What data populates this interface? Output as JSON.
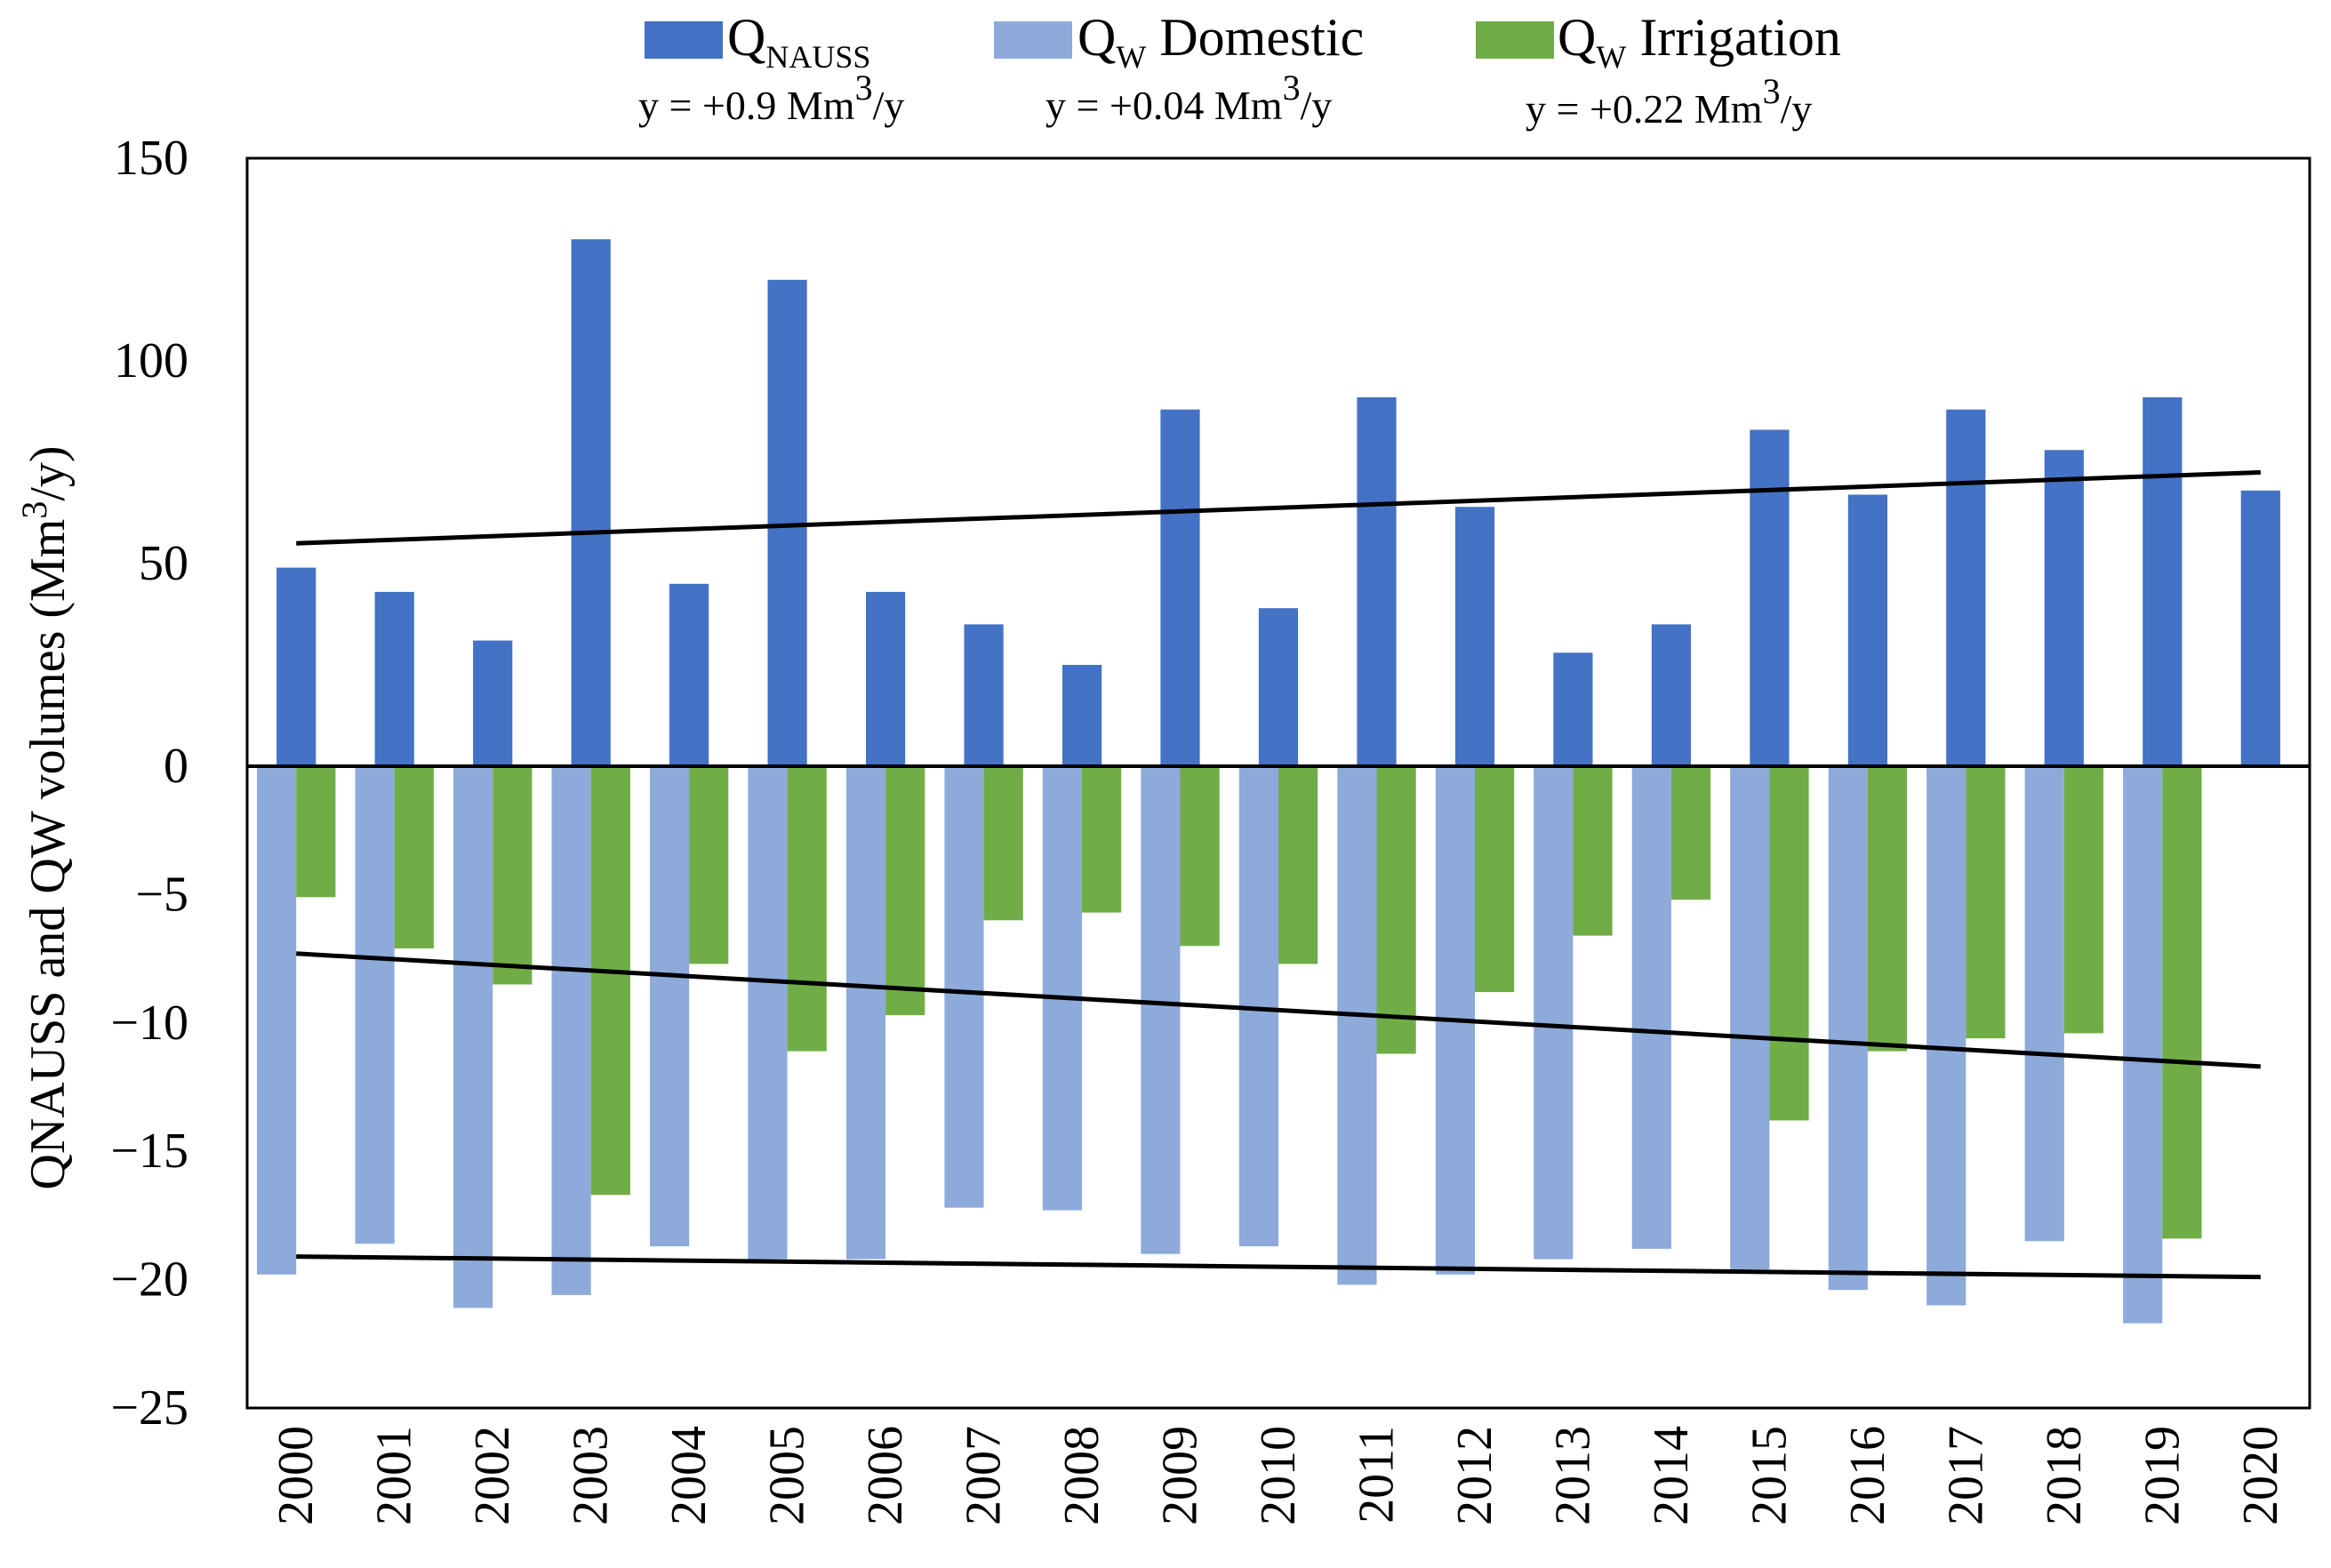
{
  "chart_data": {
    "type": "bar",
    "title": "",
    "xlabel": "",
    "ylabel": "QNAUSS and QW volumes (Mm3/y)",
    "ylabel_parts": {
      "before": "QNAUSS and QW volumes (Mm",
      "sup": "3",
      "after": "/y)"
    },
    "categories": [
      "2000",
      "2001",
      "2002",
      "2003",
      "2004",
      "2005",
      "2006",
      "2007",
      "2008",
      "2009",
      "2010",
      "2011",
      "2012",
      "2013",
      "2014",
      "2015",
      "2016",
      "2017",
      "2018",
      "2019",
      "2020"
    ],
    "y_ticks": [
      {
        "value": 150,
        "label": "150"
      },
      {
        "value": 100,
        "label": "100"
      },
      {
        "value": 50,
        "label": "50"
      },
      {
        "value": 0,
        "label": "0"
      },
      {
        "value": -5,
        "label": "−5"
      },
      {
        "value": -10,
        "label": "−10"
      },
      {
        "value": -15,
        "label": "−15"
      },
      {
        "value": -20,
        "label": "−20"
      },
      {
        "value": -25,
        "label": "−25"
      }
    ],
    "axis_note": "Broken scale: positive part 0–150, negative part 0 to −25",
    "series": [
      {
        "name": "QNAUSS",
        "sym": "Q",
        "sub": "NAUSS",
        "label_rest": "",
        "color": "#4472c4",
        "equation": {
          "pre": "y = +0.9 Mm",
          "sup": "3",
          "post": "/y"
        },
        "values": [
          49,
          43,
          31,
          130,
          45,
          120,
          43,
          35,
          25,
          88,
          39,
          91,
          64,
          28,
          35,
          83,
          67,
          88,
          78,
          91,
          68
        ],
        "trend": [
          55,
          72.5
        ]
      },
      {
        "name": "QW Domestic",
        "sym": "Q",
        "sub": "W",
        "label_rest": " Domestic",
        "color": "#8eaadb",
        "equation": {
          "pre": "y = +0.04 Mm",
          "sup": "3",
          "post": "/y"
        },
        "values": [
          -19.8,
          -18.6,
          -21.1,
          -20.6,
          -18.7,
          -19.2,
          -19.2,
          -17.2,
          -17.3,
          -19.0,
          -18.7,
          -20.2,
          -19.8,
          -19.2,
          -18.8,
          -19.6,
          -20.4,
          -21.0,
          -18.5,
          -21.7,
          0
        ],
        "trend": [
          -19.1,
          -19.9
        ]
      },
      {
        "name": "QW Irrigation",
        "sym": "Q",
        "sub": "W",
        "label_rest": " Irrigation",
        "color": "#70ad47",
        "equation": {
          "pre": "y = +0.22 Mm",
          "sup": "3",
          "post": "/y"
        },
        "values": [
          -5.1,
          -7.1,
          -8.5,
          -16.7,
          -7.7,
          -11.1,
          -9.7,
          -6.0,
          -5.7,
          -7.0,
          -7.7,
          -11.2,
          -8.8,
          -6.6,
          -5.2,
          -13.8,
          -11.1,
          -10.6,
          -10.4,
          -18.4,
          0
        ],
        "trend": [
          -7.3,
          -11.7
        ]
      }
    ],
    "legend_position": "top",
    "grid": false
  }
}
